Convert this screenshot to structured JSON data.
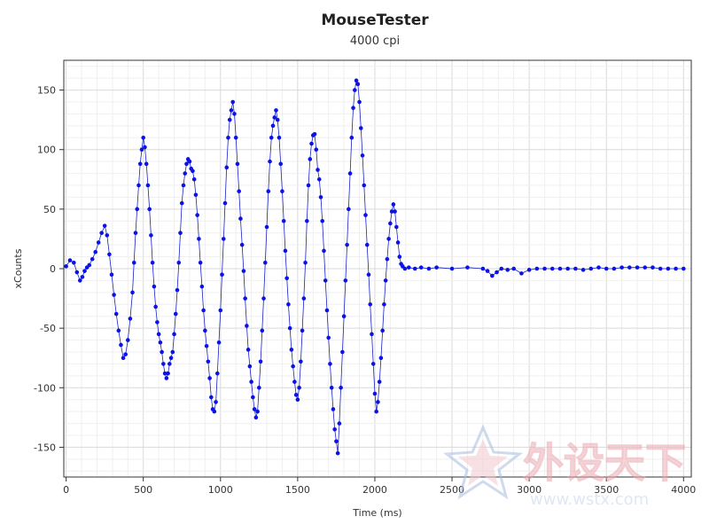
{
  "chart_data": {
    "type": "scatter",
    "title": "MouseTester",
    "subtitle": "4000 cpi",
    "xlabel": "Time (ms)",
    "ylabel": "xCounts",
    "xlim": [
      -15,
      4050
    ],
    "ylim": [
      -175,
      175
    ],
    "x_ticks": [
      0,
      500,
      1000,
      1500,
      2000,
      2500,
      3000,
      3500,
      4000
    ],
    "y_ticks": [
      -150,
      -100,
      -50,
      0,
      50,
      100,
      150
    ],
    "grid": true,
    "legend": "none",
    "marker_color": "#0a12e6",
    "line_color": "#1a22c8",
    "series": [
      {
        "values": [
          [
            0,
            2
          ],
          [
            25,
            7
          ],
          [
            50,
            5
          ],
          [
            70,
            -3
          ],
          [
            90,
            -10
          ],
          [
            105,
            -7
          ],
          [
            120,
            -2
          ],
          [
            135,
            1
          ],
          [
            150,
            3
          ],
          [
            170,
            8
          ],
          [
            190,
            14
          ],
          [
            210,
            22
          ],
          [
            230,
            30
          ],
          [
            250,
            36
          ],
          [
            265,
            28
          ],
          [
            280,
            12
          ],
          [
            295,
            -5
          ],
          [
            310,
            -22
          ],
          [
            325,
            -38
          ],
          [
            340,
            -52
          ],
          [
            355,
            -64
          ],
          [
            370,
            -75
          ],
          [
            385,
            -72
          ],
          [
            400,
            -60
          ],
          [
            415,
            -42
          ],
          [
            430,
            -20
          ],
          [
            440,
            5
          ],
          [
            450,
            30
          ],
          [
            460,
            50
          ],
          [
            470,
            70
          ],
          [
            480,
            88
          ],
          [
            490,
            100
          ],
          [
            500,
            110
          ],
          [
            510,
            102
          ],
          [
            520,
            88
          ],
          [
            530,
            70
          ],
          [
            540,
            50
          ],
          [
            550,
            28
          ],
          [
            560,
            5
          ],
          [
            570,
            -15
          ],
          [
            580,
            -32
          ],
          [
            590,
            -45
          ],
          [
            600,
            -55
          ],
          [
            610,
            -62
          ],
          [
            620,
            -70
          ],
          [
            630,
            -80
          ],
          [
            640,
            -88
          ],
          [
            650,
            -92
          ],
          [
            660,
            -88
          ],
          [
            670,
            -80
          ],
          [
            680,
            -75
          ],
          [
            690,
            -70
          ],
          [
            700,
            -55
          ],
          [
            710,
            -38
          ],
          [
            720,
            -18
          ],
          [
            730,
            5
          ],
          [
            740,
            30
          ],
          [
            750,
            55
          ],
          [
            760,
            70
          ],
          [
            770,
            80
          ],
          [
            780,
            88
          ],
          [
            790,
            92
          ],
          [
            800,
            90
          ],
          [
            810,
            84
          ],
          [
            820,
            82
          ],
          [
            830,
            75
          ],
          [
            840,
            62
          ],
          [
            850,
            45
          ],
          [
            860,
            25
          ],
          [
            870,
            5
          ],
          [
            880,
            -15
          ],
          [
            890,
            -35
          ],
          [
            900,
            -52
          ],
          [
            910,
            -65
          ],
          [
            920,
            -78
          ],
          [
            930,
            -92
          ],
          [
            940,
            -108
          ],
          [
            950,
            -118
          ],
          [
            960,
            -120
          ],
          [
            970,
            -112
          ],
          [
            980,
            -88
          ],
          [
            990,
            -62
          ],
          [
            1000,
            -35
          ],
          [
            1010,
            -5
          ],
          [
            1020,
            25
          ],
          [
            1030,
            55
          ],
          [
            1040,
            85
          ],
          [
            1050,
            110
          ],
          [
            1060,
            125
          ],
          [
            1070,
            133
          ],
          [
            1080,
            140
          ],
          [
            1090,
            130
          ],
          [
            1100,
            110
          ],
          [
            1110,
            88
          ],
          [
            1120,
            65
          ],
          [
            1130,
            42
          ],
          [
            1140,
            20
          ],
          [
            1150,
            -2
          ],
          [
            1160,
            -25
          ],
          [
            1170,
            -48
          ],
          [
            1180,
            -68
          ],
          [
            1190,
            -82
          ],
          [
            1200,
            -95
          ],
          [
            1210,
            -108
          ],
          [
            1220,
            -118
          ],
          [
            1230,
            -125
          ],
          [
            1240,
            -120
          ],
          [
            1250,
            -100
          ],
          [
            1260,
            -78
          ],
          [
            1270,
            -52
          ],
          [
            1280,
            -25
          ],
          [
            1290,
            5
          ],
          [
            1300,
            35
          ],
          [
            1310,
            65
          ],
          [
            1320,
            90
          ],
          [
            1330,
            110
          ],
          [
            1340,
            120
          ],
          [
            1350,
            127
          ],
          [
            1360,
            133
          ],
          [
            1370,
            125
          ],
          [
            1380,
            110
          ],
          [
            1390,
            88
          ],
          [
            1400,
            65
          ],
          [
            1410,
            40
          ],
          [
            1420,
            15
          ],
          [
            1430,
            -8
          ],
          [
            1440,
            -30
          ],
          [
            1450,
            -50
          ],
          [
            1460,
            -68
          ],
          [
            1470,
            -82
          ],
          [
            1480,
            -95
          ],
          [
            1490,
            -106
          ],
          [
            1500,
            -110
          ],
          [
            1510,
            -100
          ],
          [
            1520,
            -78
          ],
          [
            1530,
            -52
          ],
          [
            1540,
            -25
          ],
          [
            1550,
            5
          ],
          [
            1560,
            40
          ],
          [
            1570,
            70
          ],
          [
            1580,
            92
          ],
          [
            1590,
            105
          ],
          [
            1600,
            112
          ],
          [
            1610,
            113
          ],
          [
            1620,
            100
          ],
          [
            1630,
            83
          ],
          [
            1640,
            75
          ],
          [
            1650,
            60
          ],
          [
            1660,
            40
          ],
          [
            1670,
            15
          ],
          [
            1680,
            -10
          ],
          [
            1690,
            -35
          ],
          [
            1700,
            -58
          ],
          [
            1710,
            -80
          ],
          [
            1720,
            -100
          ],
          [
            1730,
            -118
          ],
          [
            1740,
            -135
          ],
          [
            1750,
            -145
          ],
          [
            1760,
            -155
          ],
          [
            1770,
            -130
          ],
          [
            1780,
            -100
          ],
          [
            1790,
            -70
          ],
          [
            1800,
            -40
          ],
          [
            1810,
            -10
          ],
          [
            1820,
            20
          ],
          [
            1830,
            50
          ],
          [
            1840,
            80
          ],
          [
            1850,
            110
          ],
          [
            1860,
            135
          ],
          [
            1870,
            150
          ],
          [
            1880,
            158
          ],
          [
            1890,
            155
          ],
          [
            1900,
            140
          ],
          [
            1910,
            118
          ],
          [
            1920,
            95
          ],
          [
            1930,
            70
          ],
          [
            1940,
            45
          ],
          [
            1950,
            20
          ],
          [
            1960,
            -5
          ],
          [
            1970,
            -30
          ],
          [
            1980,
            -55
          ],
          [
            1990,
            -80
          ],
          [
            2000,
            -105
          ],
          [
            2010,
            -120
          ],
          [
            2020,
            -112
          ],
          [
            2030,
            -95
          ],
          [
            2040,
            -75
          ],
          [
            2050,
            -52
          ],
          [
            2060,
            -30
          ],
          [
            2070,
            -10
          ],
          [
            2080,
            8
          ],
          [
            2090,
            25
          ],
          [
            2100,
            38
          ],
          [
            2110,
            48
          ],
          [
            2120,
            54
          ],
          [
            2130,
            48
          ],
          [
            2140,
            35
          ],
          [
            2150,
            22
          ],
          [
            2160,
            10
          ],
          [
            2170,
            4
          ],
          [
            2180,
            2
          ],
          [
            2195,
            0
          ],
          [
            2220,
            1
          ],
          [
            2260,
            0
          ],
          [
            2300,
            1
          ],
          [
            2350,
            0
          ],
          [
            2400,
            1
          ],
          [
            2500,
            0
          ],
          [
            2600,
            1
          ],
          [
            2700,
            0
          ],
          [
            2730,
            -2
          ],
          [
            2760,
            -6
          ],
          [
            2790,
            -3
          ],
          [
            2820,
            0
          ],
          [
            2860,
            -1
          ],
          [
            2900,
            0
          ],
          [
            2950,
            -4
          ],
          [
            3000,
            -1
          ],
          [
            3050,
            0
          ],
          [
            3100,
            0
          ],
          [
            3150,
            0
          ],
          [
            3200,
            0
          ],
          [
            3250,
            0
          ],
          [
            3300,
            0
          ],
          [
            3350,
            -1
          ],
          [
            3400,
            0
          ],
          [
            3450,
            1
          ],
          [
            3500,
            0
          ],
          [
            3550,
            0
          ],
          [
            3600,
            1
          ],
          [
            3650,
            1
          ],
          [
            3700,
            1
          ],
          [
            3750,
            1
          ],
          [
            3800,
            1
          ],
          [
            3850,
            0
          ],
          [
            3900,
            0
          ],
          [
            3950,
            0
          ],
          [
            4000,
            0
          ]
        ]
      }
    ]
  },
  "watermark": {
    "text": "外设天下",
    "url": "www.wstx.com"
  }
}
